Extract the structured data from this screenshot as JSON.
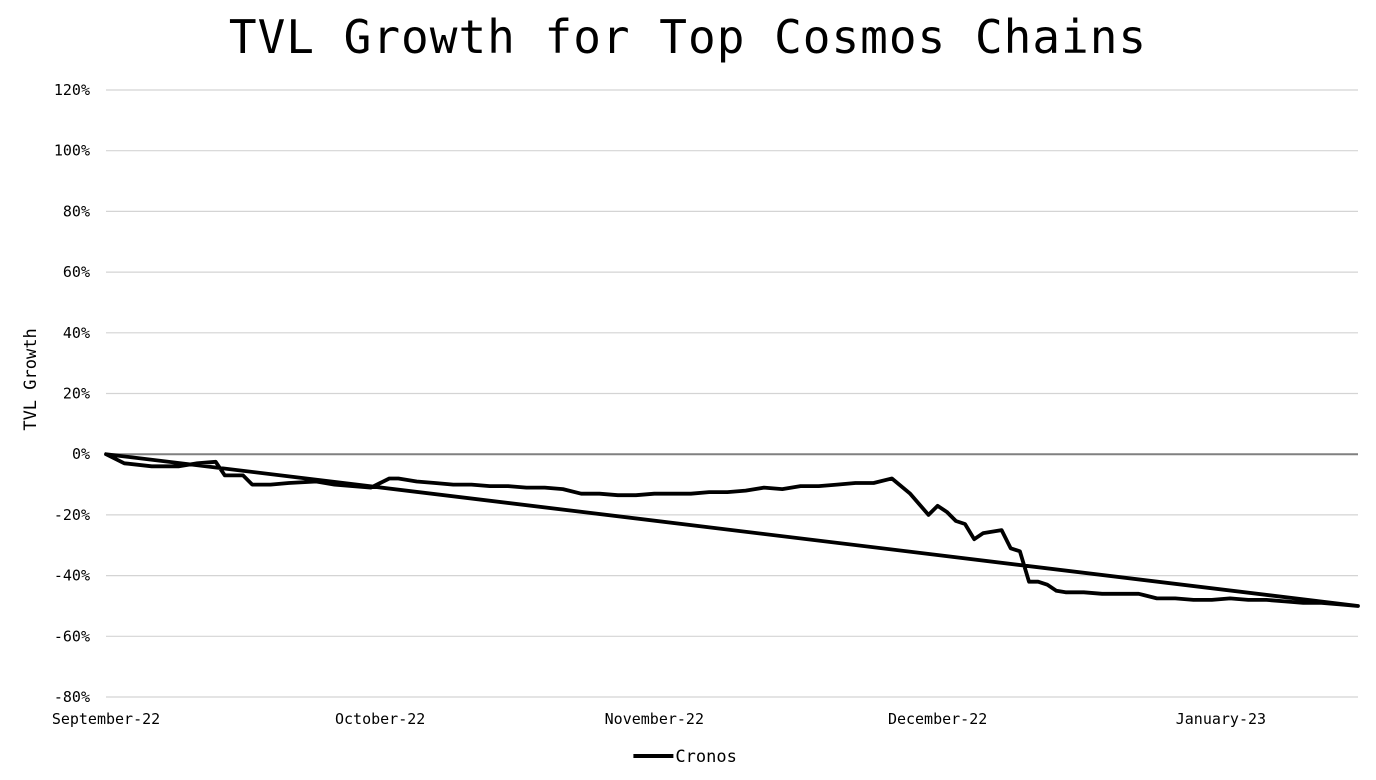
{
  "chart_data": {
    "type": "line",
    "title": "TVL Growth for Top Cosmos Chains",
    "ylabel": "TVL Growth",
    "xlabel": "",
    "ylim": [
      -80,
      120
    ],
    "yticks": [
      120,
      100,
      80,
      60,
      40,
      20,
      0,
      -20,
      -40,
      -60,
      -80
    ],
    "ytick_labels": [
      "120%",
      "100%",
      "80%",
      "60%",
      "40%",
      "20%",
      "0%",
      "-20%",
      "-40%",
      "-60%",
      "-80%"
    ],
    "xlim": [
      0,
      137
    ],
    "xticks": [
      0,
      30,
      60,
      91,
      122
    ],
    "xtick_labels": [
      "September-22",
      "October-22",
      "November-22",
      "December-22",
      "January-23"
    ],
    "grid": "horizontal",
    "legend": "bottom",
    "series": [
      {
        "name": "Cronos",
        "color": "#000000",
        "points": [
          [
            0,
            0
          ],
          [
            2,
            -3
          ],
          [
            5,
            -4
          ],
          [
            8,
            -4
          ],
          [
            10,
            -3
          ],
          [
            12,
            -2.5
          ],
          [
            13,
            -7
          ],
          [
            15,
            -7
          ],
          [
            16,
            -10
          ],
          [
            18,
            -10
          ],
          [
            20,
            -9.5
          ],
          [
            23,
            -9
          ],
          [
            25,
            -10
          ],
          [
            27,
            -10.5
          ],
          [
            29,
            -11
          ],
          [
            30,
            -9.5
          ],
          [
            31,
            -8
          ],
          [
            32,
            -8
          ],
          [
            34,
            -9
          ],
          [
            36,
            -9.5
          ],
          [
            38,
            -10
          ],
          [
            40,
            -10
          ],
          [
            42,
            -10.5
          ],
          [
            44,
            -10.5
          ],
          [
            46,
            -11
          ],
          [
            48,
            -11
          ],
          [
            50,
            -11.5
          ],
          [
            52,
            -13
          ],
          [
            54,
            -13
          ],
          [
            56,
            -13.5
          ],
          [
            58,
            -13.5
          ],
          [
            60,
            -13
          ],
          [
            62,
            -13
          ],
          [
            64,
            -13
          ],
          [
            66,
            -12.5
          ],
          [
            68,
            -12.5
          ],
          [
            70,
            -12
          ],
          [
            72,
            -11
          ],
          [
            74,
            -11.5
          ],
          [
            76,
            -10.5
          ],
          [
            78,
            -10.5
          ],
          [
            80,
            -10
          ],
          [
            82,
            -9.5
          ],
          [
            84,
            -9.5
          ],
          [
            86,
            -8
          ],
          [
            88,
            -13
          ],
          [
            90,
            -20
          ],
          [
            91,
            -17
          ],
          [
            92,
            -19
          ],
          [
            93,
            -22
          ],
          [
            94,
            -23
          ],
          [
            95,
            -28
          ],
          [
            96,
            -26
          ],
          [
            98,
            -25
          ],
          [
            99,
            -31
          ],
          [
            100,
            -32
          ],
          [
            101,
            -42
          ],
          [
            102,
            -42
          ],
          [
            103,
            -43
          ],
          [
            104,
            -45
          ],
          [
            105,
            -45.5
          ],
          [
            107,
            -45.5
          ],
          [
            109,
            -46
          ],
          [
            111,
            -46
          ],
          [
            113,
            -46
          ],
          [
            115,
            -47.5
          ],
          [
            117,
            -47.5
          ],
          [
            119,
            -48
          ],
          [
            121,
            -48
          ],
          [
            123,
            -47.5
          ],
          [
            125,
            -48
          ],
          [
            127,
            -48
          ],
          [
            129,
            -48.5
          ],
          [
            131,
            -49
          ],
          [
            133,
            -49
          ],
          [
            135,
            -49.5
          ],
          [
            137,
            -50
          ],
          [
            0,
            0
          ]
        ]
      }
    ]
  }
}
